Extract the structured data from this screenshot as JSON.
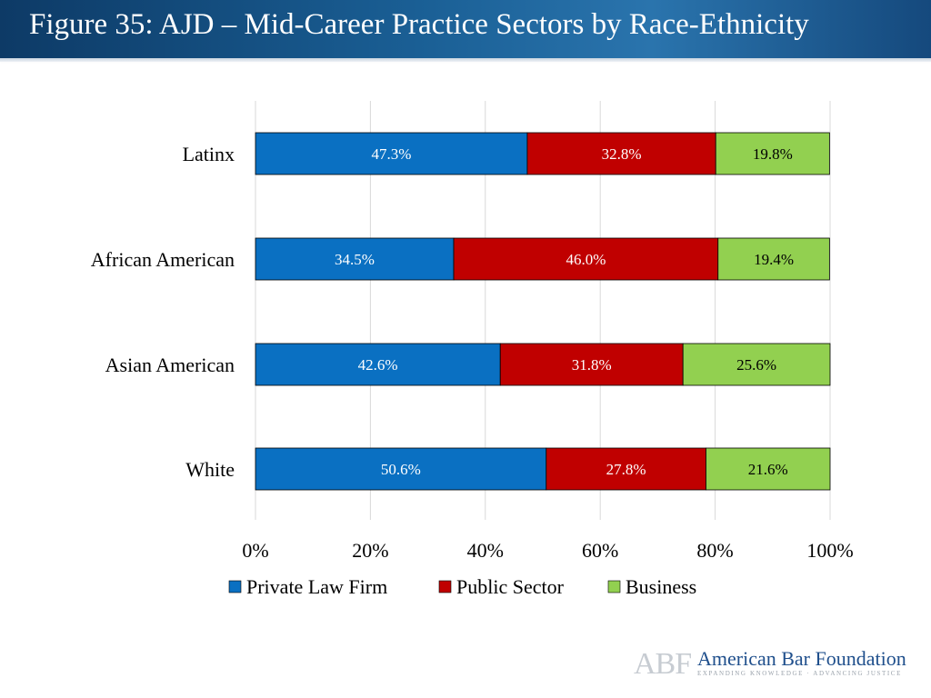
{
  "title": "Figure 35: AJD – Mid-Career Practice Sectors by Race-Ethnicity",
  "chart_data": {
    "type": "bar",
    "orientation": "horizontal",
    "stacked": true,
    "categories": [
      "Latinx",
      "African American",
      "Asian American",
      "White"
    ],
    "series": [
      {
        "name": "Private Law Firm",
        "color": "#0a70c2",
        "text_color": "#ffffff",
        "values": [
          47.3,
          34.5,
          42.6,
          50.6
        ],
        "labels": [
          "47.3%",
          "34.5%",
          "42.6%",
          "50.6%"
        ]
      },
      {
        "name": "Public Sector",
        "color": "#c00000",
        "text_color": "#ffffff",
        "values": [
          32.8,
          46.0,
          31.8,
          27.8
        ],
        "labels": [
          "32.8%",
          "46.0%",
          "31.8%",
          "27.8%"
        ]
      },
      {
        "name": "Business",
        "color": "#92d050",
        "text_color": "#000000",
        "values": [
          19.8,
          19.4,
          25.6,
          21.6
        ],
        "labels": [
          "19.8%",
          "19.4%",
          "25.6%",
          "21.6%"
        ]
      }
    ],
    "xlim": [
      0,
      100
    ],
    "xticks": [
      0,
      20,
      40,
      60,
      80,
      100
    ],
    "xtick_labels": [
      "0%",
      "20%",
      "40%",
      "60%",
      "80%",
      "100%"
    ],
    "grid": true,
    "legend_position": "bottom"
  },
  "logo": {
    "mark": "ABF",
    "name": "American Bar Foundation",
    "tagline": "EXPANDING KNOWLEDGE · ADVANCING JUSTICE"
  }
}
